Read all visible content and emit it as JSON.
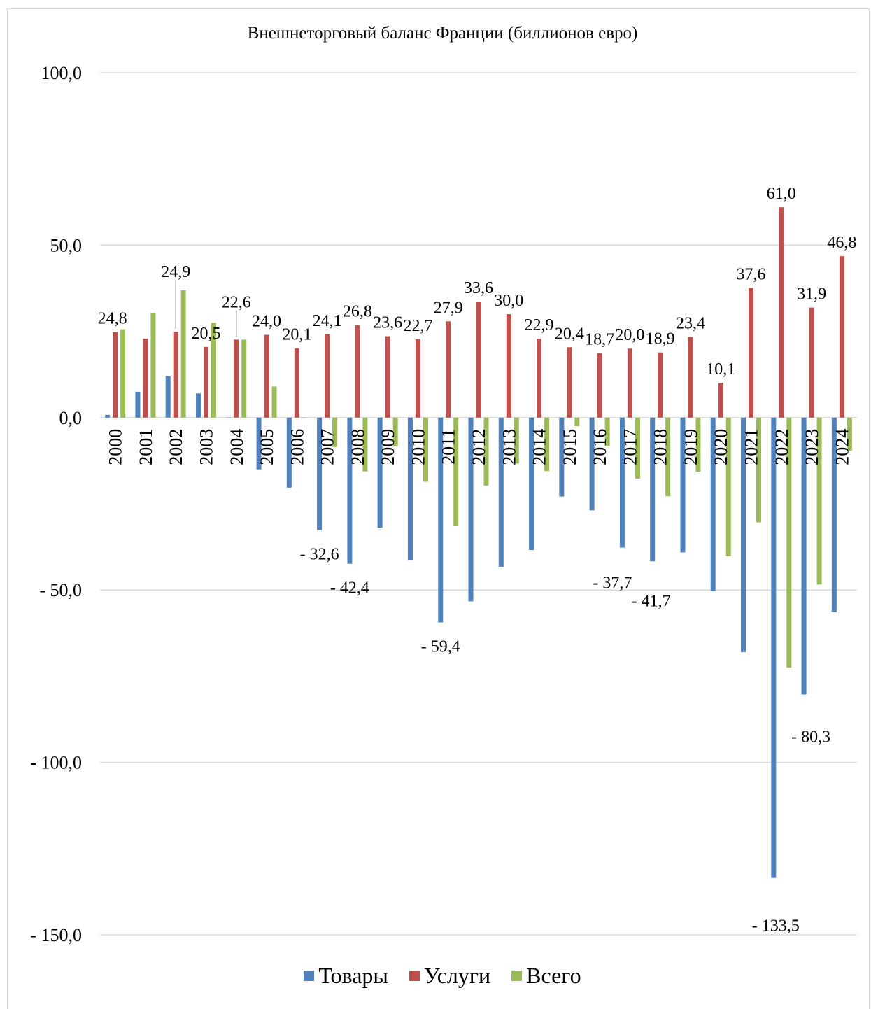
{
  "chart_data": {
    "type": "bar",
    "title": "Внешнеторговый баланс Франции (биллионов евро)",
    "xlabel": "",
    "ylabel": "",
    "ylim": [
      -150,
      100
    ],
    "yticks": [
      "100,0",
      "50,0",
      "0,0",
      "- 50,0",
      "- 100,0",
      "- 150,0"
    ],
    "ytick_values": [
      100,
      50,
      0,
      -50,
      -100,
      -150
    ],
    "grid": true,
    "legend_position": "bottom",
    "categories": [
      "2000",
      "2001",
      "2002",
      "2003",
      "2004",
      "2005",
      "2006",
      "2007",
      "2008",
      "2009",
      "2010",
      "2011",
      "2012",
      "2013",
      "2014",
      "2015",
      "2016",
      "2017",
      "2018",
      "2019",
      "2020",
      "2021",
      "2022",
      "2023",
      "2024"
    ],
    "series": [
      {
        "name": "Товары",
        "color": "#4f81bd",
        "values": [
          0.8,
          7.5,
          12.0,
          7.0,
          0.0,
          -15.0,
          -20.3,
          -32.6,
          -42.4,
          -31.9,
          -41.3,
          -59.4,
          -53.3,
          -43.3,
          -38.4,
          -22.9,
          -26.9,
          -37.7,
          -41.7,
          -39.1,
          -50.3,
          -68.0,
          -133.5,
          -80.3,
          -56.4
        ],
        "labels": [
          "",
          "",
          "",
          "",
          "",
          "",
          "",
          "- 32,6",
          "- 42,4",
          "",
          "",
          "- 59,4",
          "",
          "",
          "",
          "",
          "",
          "- 37,7",
          "- 41,7",
          "",
          "",
          "",
          "- 133,5",
          "- 80,3",
          ""
        ]
      },
      {
        "name": "Услуги",
        "color": "#c0504d",
        "values": [
          24.8,
          22.9,
          24.9,
          20.5,
          22.6,
          24.0,
          20.1,
          24.1,
          26.8,
          23.6,
          22.7,
          27.9,
          33.6,
          30.0,
          22.9,
          20.4,
          18.7,
          20.0,
          18.9,
          23.4,
          10.1,
          37.6,
          61.0,
          31.9,
          46.8
        ],
        "labels": [
          "24,8",
          "",
          "24,9",
          "20,5",
          "22,6",
          "24,0",
          "20,1",
          "24,1",
          "26,8",
          "23,6",
          "22,7",
          "27,9",
          "33,6",
          "30,0",
          "22,9",
          "20,4",
          "18,7",
          "20,0",
          "18,9",
          "23,4",
          "10,1",
          "37,6",
          "61,0",
          "31,9",
          "46,8"
        ]
      },
      {
        "name": "Всего",
        "color": "#9bbb59",
        "values": [
          25.6,
          30.4,
          36.9,
          27.5,
          22.6,
          9.0,
          -0.2,
          -8.5,
          -15.6,
          -8.3,
          -18.6,
          -31.5,
          -19.7,
          -13.3,
          -15.5,
          -2.5,
          -8.2,
          -17.7,
          -22.8,
          -15.7,
          -40.2,
          -30.4,
          -72.5,
          -48.4,
          -9.6
        ]
      }
    ]
  }
}
